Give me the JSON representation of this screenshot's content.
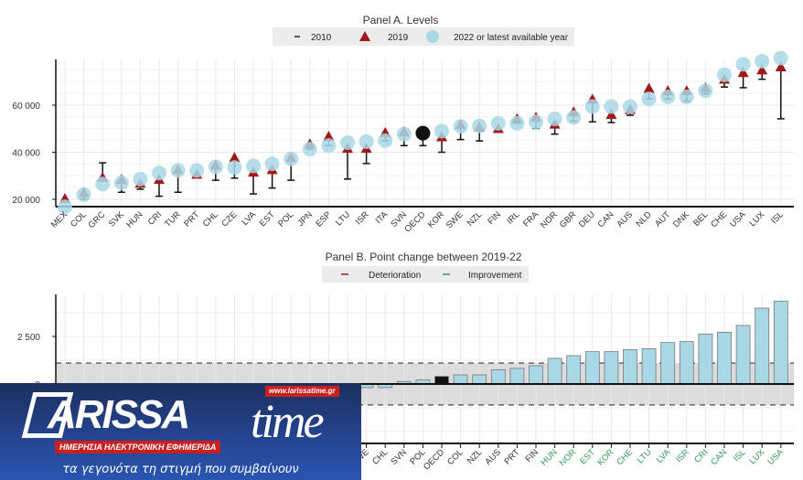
{
  "chart_data": [
    {
      "type": "scatter",
      "title": "Panel A. Levels",
      "legend": [
        {
          "label": "2010",
          "marker": "dash",
          "color": "#222222"
        },
        {
          "label": "2019",
          "marker": "triangle",
          "color": "#a01818"
        },
        {
          "label": "2022  or latest available year",
          "marker": "circle",
          "color": "#a8d8e6"
        }
      ],
      "legend_placement": "top-center",
      "ylim": [
        17000,
        80500
      ],
      "yticks": [
        20000,
        40000,
        60000
      ],
      "ytick_labels": [
        "20 000",
        "40 000",
        "60 000"
      ],
      "highlight": "OECD",
      "categories": [
        "MEX",
        "COL",
        "GRC",
        "SVK",
        "HUN",
        "CRI",
        "TUR",
        "PRT",
        "CHL",
        "CZE",
        "LVA",
        "EST",
        "POL",
        "JPN",
        "ESP",
        "LTU",
        "ISR",
        "ITA",
        "SVN",
        "OECD",
        "KOR",
        "SWE",
        "NZL",
        "FIN",
        "IRL",
        "FRA",
        "NOR",
        "GBR",
        "DEU",
        "CAN",
        "AUS",
        "NLD",
        "AUT",
        "DNK",
        "BEL",
        "CHE",
        "USA",
        "LUX",
        "ISL"
      ],
      "series": [
        {
          "name": "2010",
          "values": [
            19500,
            20000,
            35500,
            23000,
            24300,
            21300,
            23000,
            30300,
            28100,
            29000,
            22300,
            24800,
            28100,
            41300,
            42800,
            28600,
            35200,
            44900,
            42800,
            42800,
            40000,
            45400,
            44800,
            49700,
            52300,
            50100,
            47700,
            53200,
            52900,
            52600,
            55700,
            62600,
            62600,
            61700,
            64800,
            67700,
            67400,
            71000,
            54200
          ]
        },
        {
          "name": "2019",
          "values": [
            20000,
            22500,
            29000,
            28000,
            26500,
            28100,
            32300,
            30300,
            34200,
            37400,
            31200,
            32300,
            37400,
            43200,
            46400,
            41300,
            41300,
            48000,
            48400,
            48100,
            46200,
            51400,
            50300,
            49700,
            53900,
            54500,
            51600,
            56800,
            62200,
            55700,
            57800,
            66800,
            65800,
            65800,
            67100,
            70700,
            73500,
            74600,
            75900
          ]
        },
        {
          "name": "2022  or latest available year",
          "values": [
            16800,
            22000,
            26500,
            27000,
            28600,
            31200,
            32300,
            32300,
            33800,
            33500,
            34200,
            35100,
            37200,
            41300,
            42800,
            44100,
            44500,
            44900,
            47700,
            48100,
            49000,
            51000,
            51200,
            52300,
            52300,
            52900,
            54200,
            54800,
            59400,
            59400,
            59400,
            62600,
            63500,
            63500,
            66100,
            72900,
            77400,
            78700,
            80000
          ]
        }
      ]
    },
    {
      "type": "bar",
      "title": "Panel B. Point change between 2019-22",
      "legend": [
        {
          "label": "Deterioration",
          "color": "#a01818"
        },
        {
          "label": "Improvement",
          "color": "#3a9a5a"
        }
      ],
      "legend_placement": "top-center",
      "ylim": [
        -3100,
        4700
      ],
      "yticks": [
        0,
        2500
      ],
      "ytick_labels": [
        "0",
        "2 500"
      ],
      "band": [
        -1100,
        1100
      ],
      "highlight": "OECD",
      "categories": [
        "SWE",
        "CHL",
        "SVN",
        "POL",
        "OECD",
        "COL",
        "NZL",
        "AUS",
        "PRT",
        "FIN",
        "HUN",
        "NOR",
        "EST",
        "KOR",
        "CHE",
        "LTU",
        "LVA",
        "ISR",
        "CRI",
        "CAN",
        "ISL",
        "LUX",
        "USA"
      ],
      "improvement": [
        false,
        false,
        false,
        false,
        false,
        false,
        false,
        false,
        false,
        false,
        true,
        true,
        true,
        true,
        true,
        true,
        true,
        true,
        true,
        true,
        true,
        true,
        true
      ],
      "values": [
        -190,
        -190,
        130,
        210,
        400,
        480,
        480,
        750,
        820,
        960,
        1350,
        1490,
        1700,
        1700,
        1810,
        1860,
        2180,
        2230,
        2630,
        2720,
        3080,
        3990,
        4360
      ],
      "bar_color": "#a8d8e6"
    }
  ],
  "logo": {
    "name_part1": "ARISSA",
    "name_part2": "time",
    "url": "www.larissatime.gr",
    "tagline": "ΗΜΕΡΗΣΙΑ ΗΛΕΚΤΡΟΝΙΚΗ ΕΦΗΜΕΡΙΔΑ",
    "slogan": "τα γεγονότα τη στιγμή που συμβαίνουν"
  }
}
